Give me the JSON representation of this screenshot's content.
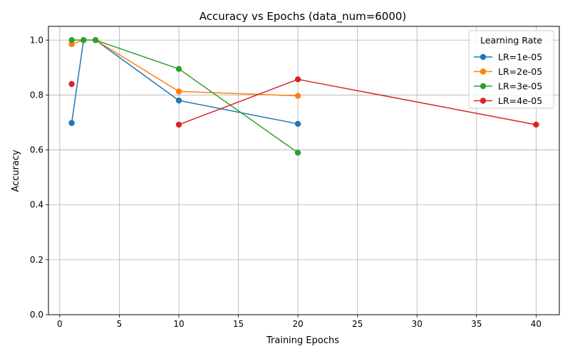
{
  "chart_data": {
    "type": "line",
    "title": "Accuracy vs Epochs (data_num=6000)",
    "xlabel": "Training Epochs",
    "ylabel": "Accuracy",
    "xlim": [
      -0.95,
      41.95
    ],
    "ylim": [
      0,
      1.05
    ],
    "xticks": [
      0,
      5,
      10,
      15,
      20,
      25,
      30,
      35,
      40
    ],
    "yticks": [
      0.0,
      0.2,
      0.4,
      0.6,
      0.8,
      1.0
    ],
    "grid": true,
    "legend": {
      "title": "Learning Rate",
      "placement": "top-right"
    },
    "series": [
      {
        "name": "LR=1e-05",
        "color": "#1f77b4",
        "x": [
          1,
          2,
          3,
          10,
          20
        ],
        "y": [
          0.698,
          1.0,
          1.0,
          0.78,
          0.695
        ],
        "segments": [
          [
            0,
            4
          ]
        ]
      },
      {
        "name": "LR=2e-05",
        "color": "#ff7f0e",
        "x": [
          1,
          2,
          3,
          10,
          20
        ],
        "y": [
          0.985,
          1.0,
          1.0,
          0.813,
          0.797
        ],
        "segments": [
          [
            0,
            4
          ]
        ]
      },
      {
        "name": "LR=3e-05",
        "color": "#2ca02c",
        "x": [
          1,
          2,
          3,
          10,
          20
        ],
        "y": [
          1.0,
          1.0,
          1.0,
          0.895,
          0.59
        ],
        "segments": [
          [
            0,
            4
          ]
        ]
      },
      {
        "name": "LR=4e-05",
        "color": "#d62728",
        "x": [
          1,
          10,
          20,
          40
        ],
        "y": [
          0.84,
          0.692,
          0.857,
          0.692
        ],
        "segments": [
          [
            0,
            0
          ],
          [
            1,
            3
          ]
        ]
      }
    ]
  }
}
